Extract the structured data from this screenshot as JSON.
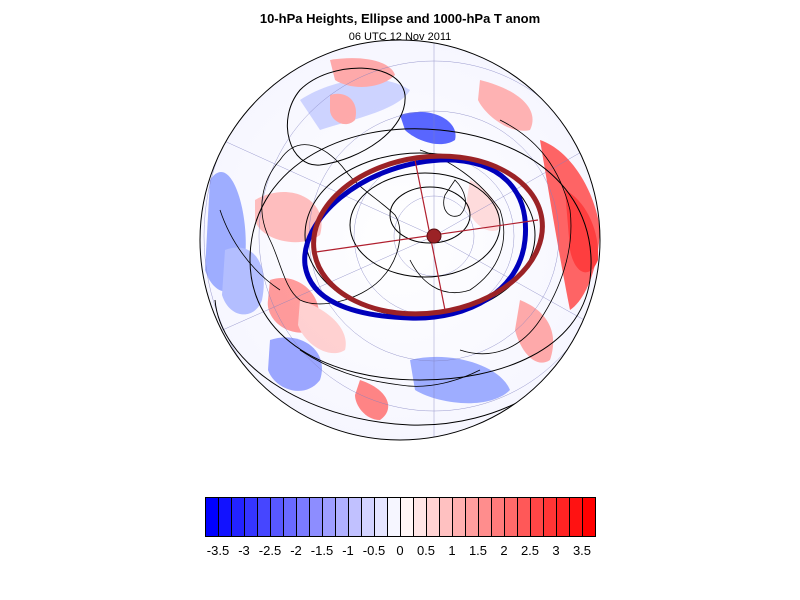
{
  "header": {
    "title": "10-hPa Heights, Ellipse and 1000-hPa T anom",
    "subtitle": "06 UTC 12 Nov 2011"
  },
  "colors": {
    "negative": "#0000ff",
    "positive": "#ff0000",
    "ellipse_observed": "#0000bb",
    "ellipse_fit": "#9b2226"
  },
  "colorbar": {
    "levels": [
      -3.75,
      -3.5,
      -3.25,
      -3,
      -2.75,
      -2.5,
      -2.25,
      -2,
      -1.75,
      -1.5,
      -1.25,
      -1,
      -0.75,
      -0.5,
      -0.25,
      0,
      0.25,
      0.5,
      0.75,
      1,
      1.25,
      1.5,
      1.75,
      2,
      2.25,
      2.5,
      2.75,
      3,
      3.25,
      3.5,
      3.75
    ],
    "tick_labels": [
      "-3.5",
      "-3",
      "-2.5",
      "-2",
      "-1.5",
      "-1",
      "-0.5",
      "0",
      "0.5",
      "1",
      "1.5",
      "2",
      "2.5",
      "3",
      "3.5"
    ],
    "range": [
      -3.75,
      3.75
    ]
  },
  "map": {
    "projection": "north polar stereographic",
    "field": "1000-hPa T anom",
    "contours": "10-hPa Heights",
    "overlay": "Ellipse"
  }
}
